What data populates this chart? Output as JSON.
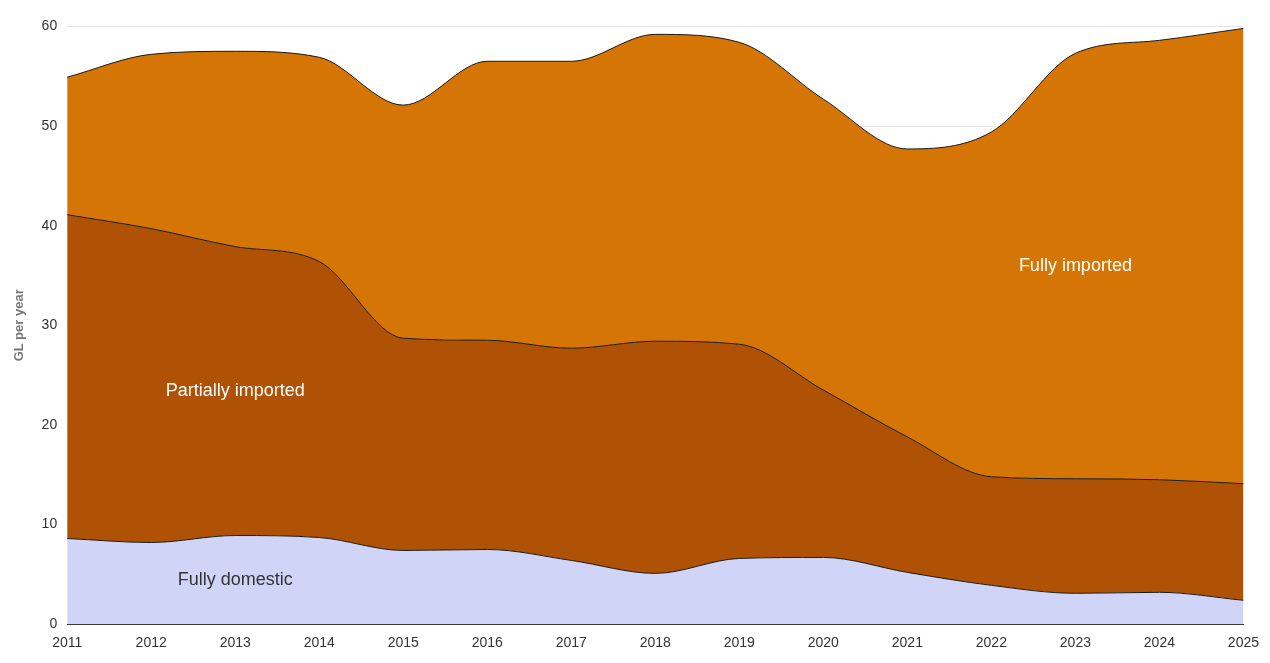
{
  "chart_data": {
    "type": "area",
    "stacked": true,
    "ylabel": "GL per year",
    "categories": [
      "2011",
      "2012",
      "2013",
      "2014",
      "2015",
      "2016",
      "2017",
      "2018",
      "2019",
      "2020",
      "2021",
      "2022",
      "2023",
      "2024",
      "2025"
    ],
    "series": [
      {
        "name": "Fully domestic",
        "color": "#d0d5f7",
        "values": [
          8.6,
          8.2,
          8.9,
          8.7,
          7.4,
          7.5,
          6.4,
          5.1,
          6.6,
          6.7,
          5.2,
          3.9,
          3.1,
          3.2,
          2.4
        ]
      },
      {
        "name": "Partially imported",
        "color": "#b05206",
        "values": [
          32.5,
          31.5,
          29.0,
          27.7,
          21.3,
          21.0,
          21.3,
          23.3,
          21.5,
          16.8,
          13.6,
          10.9,
          11.5,
          11.3,
          11.7
        ]
      },
      {
        "name": "Fully imported",
        "color": "#d47506",
        "values": [
          13.8,
          17.5,
          19.6,
          20.5,
          23.4,
          28.0,
          28.8,
          30.8,
          30.3,
          29.2,
          28.9,
          34.6,
          42.7,
          44.1,
          45.7
        ]
      }
    ],
    "ylim": [
      0,
      60
    ],
    "yticks": [
      0,
      10,
      20,
      30,
      40,
      50,
      60
    ],
    "grid": "y",
    "legend": false
  }
}
